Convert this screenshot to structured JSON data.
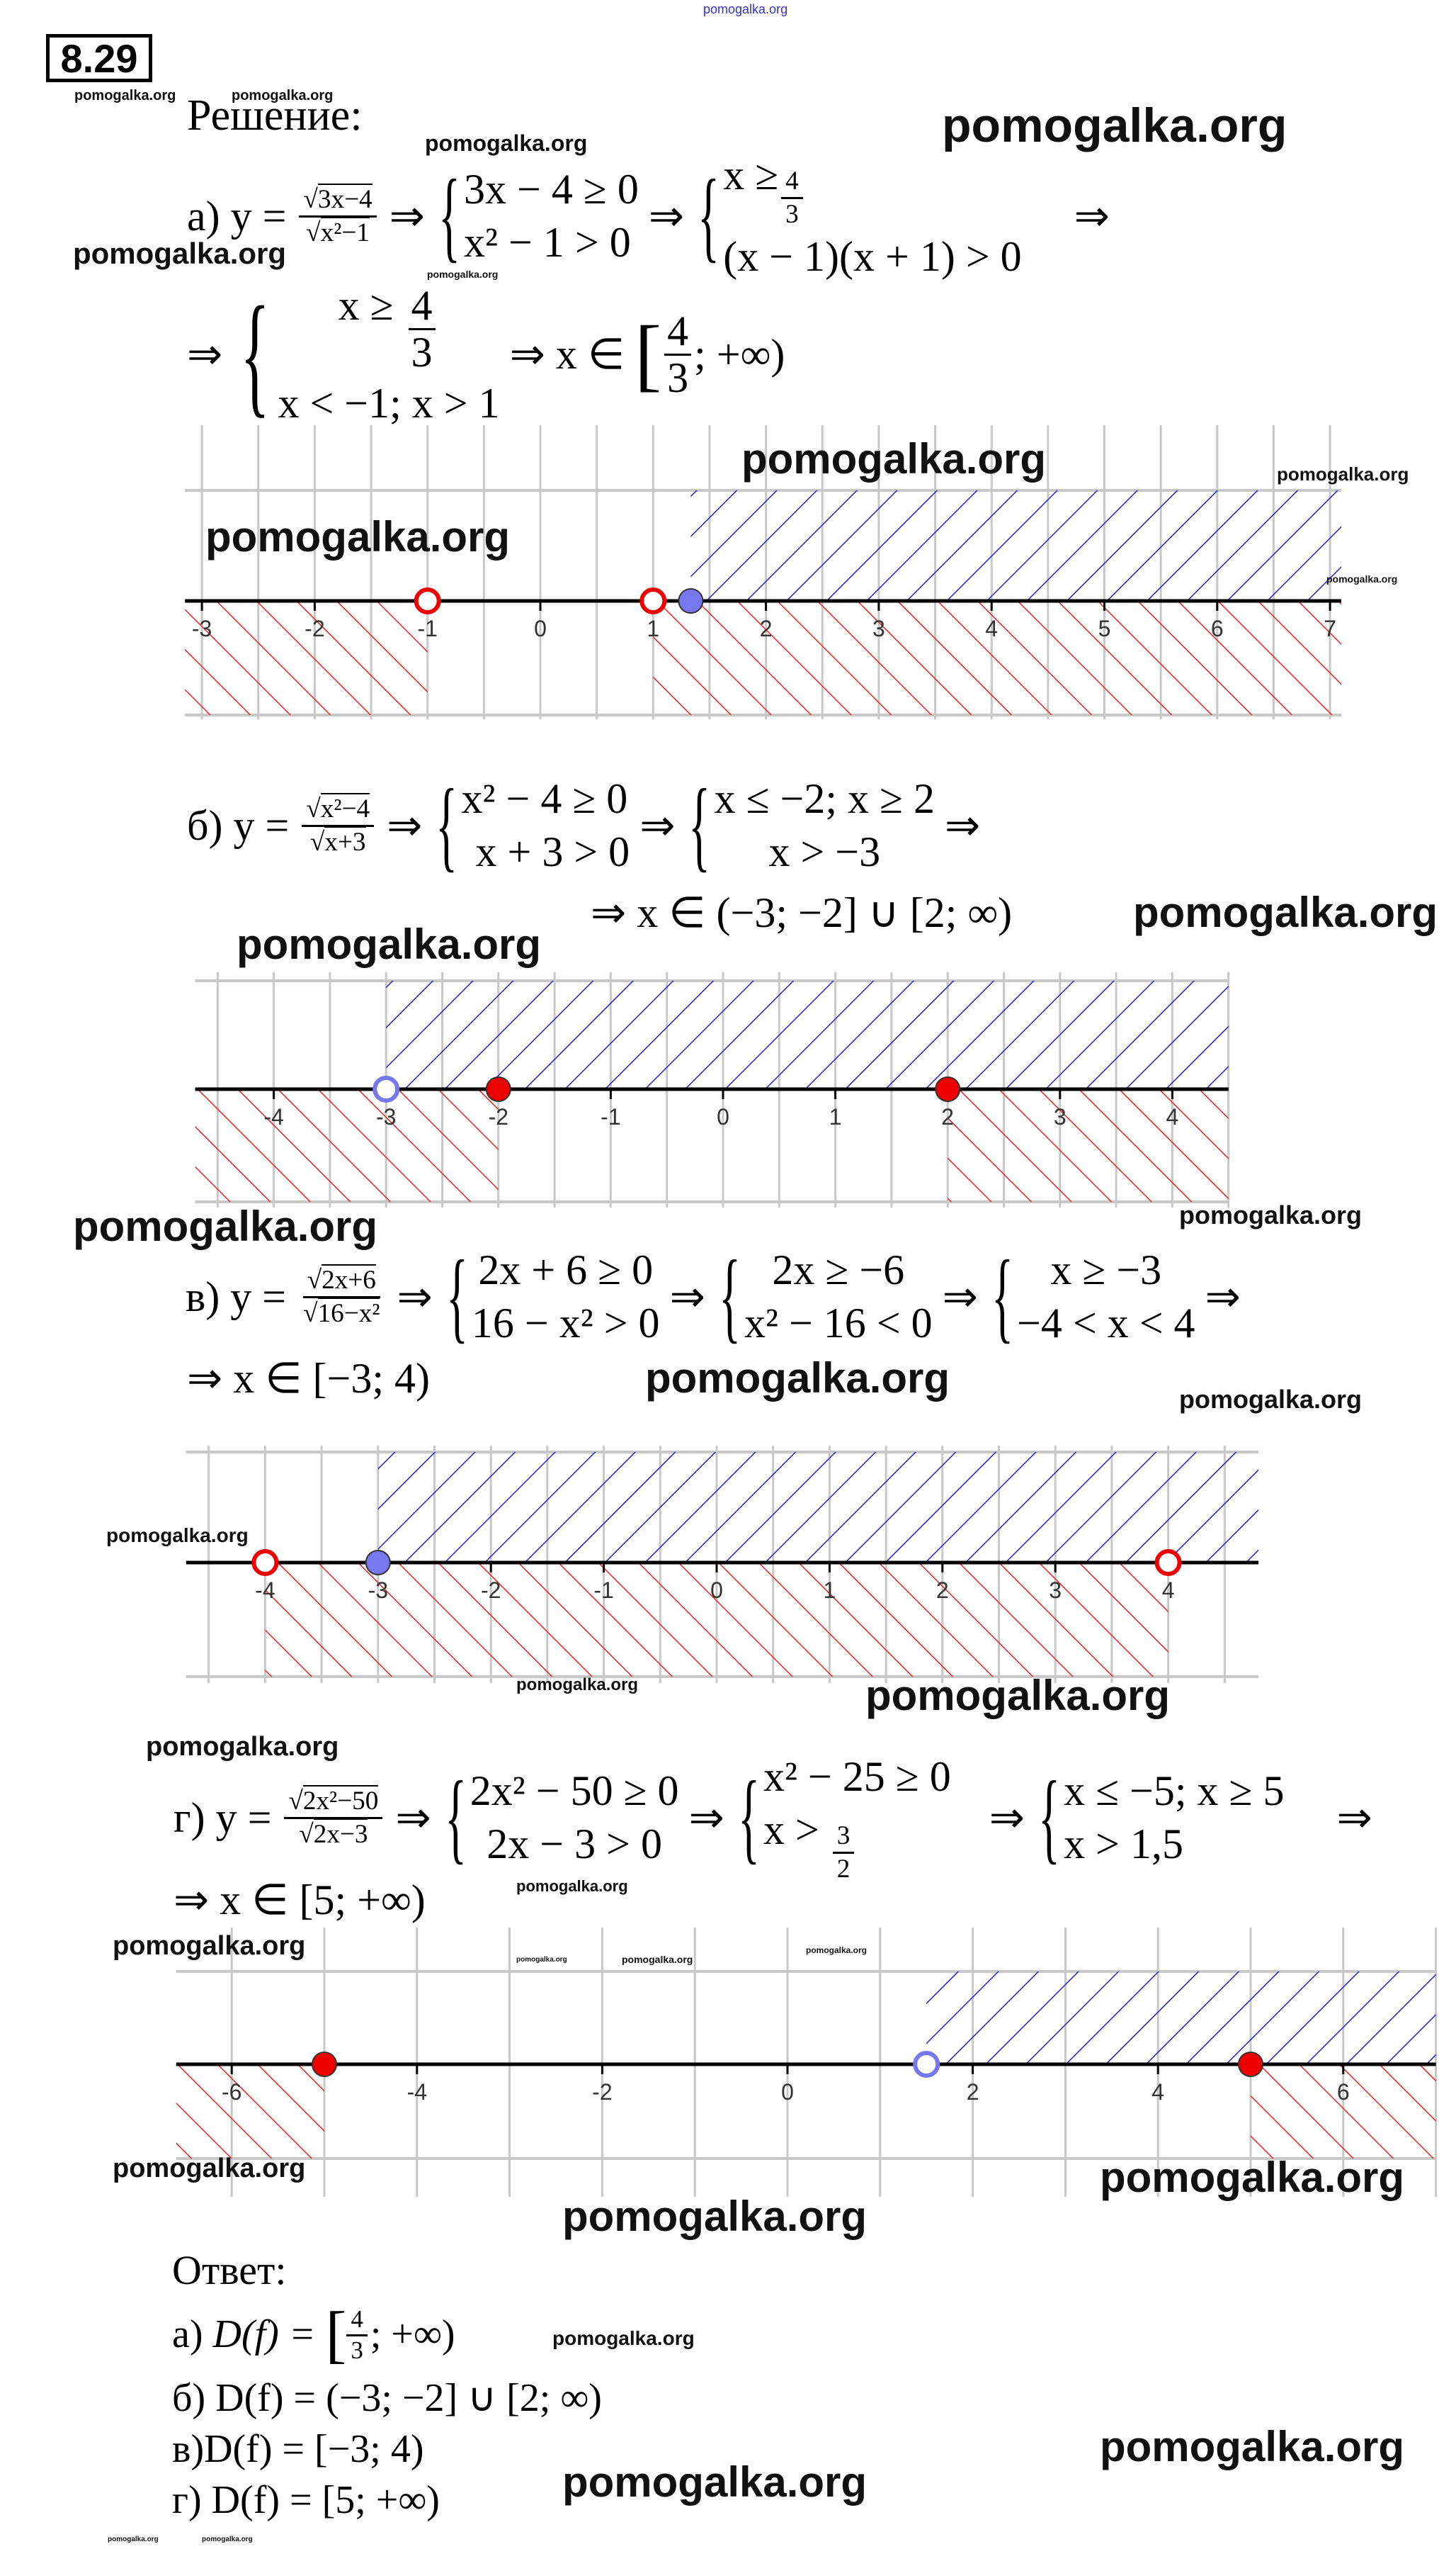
{
  "problem_number": "8.29",
  "solution_heading": "Решение:",
  "arrow": "⇒",
  "a": {
    "label": "а) y =",
    "num": "3x−4",
    "den": "x²−1",
    "sys1": [
      "3x − 4 ≥ 0",
      "x² − 1 > 0"
    ],
    "sys2_pre": "x ≥",
    "sys2_num": "4",
    "sys2_den": "3",
    "sys2_line2": "(x − 1)(x + 1) > 0",
    "sys3_pre": "x ≥",
    "sys3_num": "4",
    "sys3_den": "3",
    "sys3_line2": "x < −1; x > 1",
    "result_pre": "⇒ x ∈",
    "result_open": "[",
    "result_num": "4",
    "result_den": "3",
    "result_post": "; +∞)"
  },
  "b": {
    "label": "б) y =",
    "num": "x²−4",
    "den": "x+3",
    "sys1": [
      "x² − 4 ≥ 0",
      "x + 3 > 0"
    ],
    "sys2": [
      "x ≤ −2; x ≥ 2",
      "x > −3"
    ],
    "result": "⇒ x ∈ (−3; −2] ∪ [2; ∞)"
  },
  "c": {
    "label": "в) y =",
    "num": "2x+6",
    "den": "16−x²",
    "sys1": [
      "2x + 6 ≥ 0",
      "16 − x² > 0"
    ],
    "sys2": [
      "2x ≥ −6",
      "x² − 16 < 0"
    ],
    "sys3": [
      "x ≥ −3",
      "−4 < x < 4"
    ],
    "result": "⇒ x ∈ [−3; 4)"
  },
  "d": {
    "label": "г) y =",
    "num": "2x²−50",
    "den": "2x−3",
    "sys1": [
      "2x² − 50 ≥ 0",
      "2x − 3 > 0"
    ],
    "sys2_line1": "x² − 25 ≥ 0",
    "sys2_pre": "x >",
    "sys2_num": "3",
    "sys2_den": "2",
    "sys3": [
      "x ≤ −5; x ≥ 5",
      "x > 1,5"
    ],
    "result": "⇒ x ∈ [5; +∞)"
  },
  "answer": {
    "heading": "Ответ:",
    "a_label": "а)",
    "a_df": "D(f) =",
    "a_num": "4",
    "a_den": "3",
    "a_post": "; +∞)",
    "b": "б) D(f) = (−3; −2] ∪ [2; ∞)",
    "c": "в)D(f) = [−3; 4)",
    "d": "г) D(f) = [5; +∞)"
  },
  "colors": {
    "upper_hatch": "#2222cc",
    "lower_hatch": "#ee2222",
    "open_blue": "#7777ee",
    "point_red": "#ee0000",
    "grid": "#c8c8c8"
  },
  "number_lines": [
    {
      "ticks": [
        -3,
        -2,
        -1,
        0,
        1,
        2,
        3,
        4,
        5,
        6,
        7
      ],
      "range": [
        -3.15,
        7.1
      ],
      "upper": [
        [
          1.3333,
          7.1
        ]
      ],
      "lower": [
        [
          -3.15,
          -1
        ],
        [
          1,
          7.1
        ]
      ],
      "points": [
        {
          "x": -1,
          "fill": "open",
          "color": "red"
        },
        {
          "x": 1,
          "fill": "open",
          "color": "red"
        },
        {
          "x": 1.3333,
          "fill": "filled",
          "color": "blue"
        }
      ]
    },
    {
      "ticks": [
        -4,
        -3,
        -2,
        -1,
        0,
        1,
        2,
        3,
        4
      ],
      "range": [
        -4.7,
        4.5
      ],
      "upper": [
        [
          -3,
          4.5
        ]
      ],
      "lower": [
        [
          -4.7,
          -2
        ],
        [
          2,
          4.5
        ]
      ],
      "points": [
        {
          "x": -3,
          "fill": "open",
          "color": "blue"
        },
        {
          "x": -2,
          "fill": "filled",
          "color": "red"
        },
        {
          "x": 2,
          "fill": "filled",
          "color": "red"
        }
      ]
    },
    {
      "ticks": [
        -4,
        -3,
        -2,
        -1,
        0,
        1,
        2,
        3,
        4
      ],
      "range": [
        -4.7,
        4.8
      ],
      "upper": [
        [
          -3,
          4.8
        ]
      ],
      "lower": [
        [
          -4,
          4
        ]
      ],
      "points": [
        {
          "x": -4,
          "fill": "open",
          "color": "red"
        },
        {
          "x": -3,
          "fill": "filled",
          "color": "blue"
        },
        {
          "x": 4,
          "fill": "open",
          "color": "red"
        }
      ]
    },
    {
      "ticks": [
        -6,
        -4,
        -2,
        0,
        2,
        4,
        6
      ],
      "range": [
        -6.6,
        7.0
      ],
      "upper": [
        [
          1.5,
          7.0
        ]
      ],
      "lower": [
        [
          -6.6,
          -5
        ],
        [
          5,
          7.0
        ]
      ],
      "points": [
        {
          "x": -5,
          "fill": "filled",
          "color": "red"
        },
        {
          "x": 1.5,
          "fill": "open",
          "color": "blue"
        },
        {
          "x": 5,
          "fill": "filled",
          "color": "red"
        }
      ]
    }
  ],
  "watermark": "pomogalka.org"
}
